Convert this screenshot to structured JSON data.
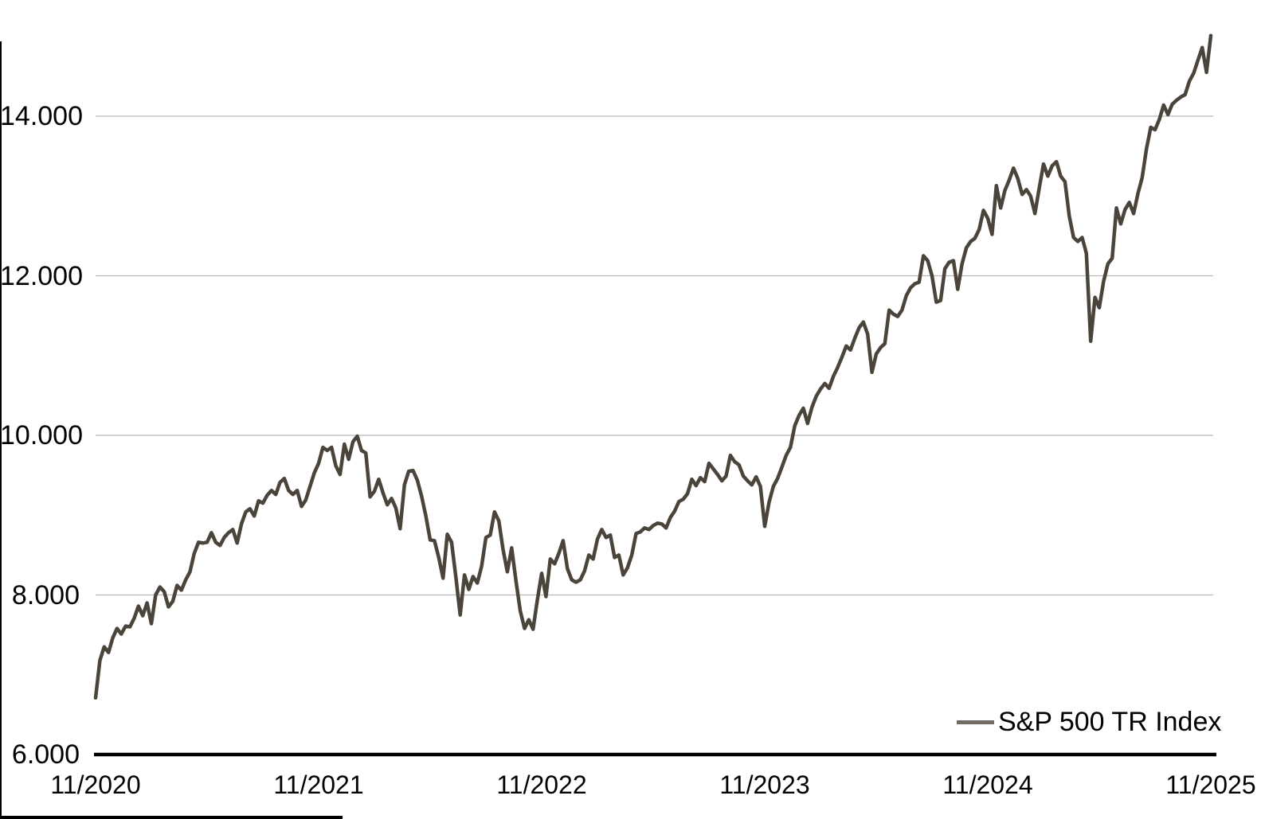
{
  "chart_data": {
    "type": "line",
    "title": "",
    "xlabel": "",
    "ylabel": "",
    "x_interval": "weekly",
    "x_ticks": [
      "11/2020",
      "11/2021",
      "11/2022",
      "11/2023",
      "11/2024",
      "11/2025"
    ],
    "x_tick_indices": [
      0,
      52,
      104,
      156,
      208,
      260
    ],
    "y_ticks": [
      "6.000",
      "8.000",
      "10.000",
      "12.000",
      "14.000"
    ],
    "y_tick_values": [
      6,
      8,
      10,
      12,
      14
    ],
    "ylim": [
      6,
      15.2
    ],
    "grid": "horizontal",
    "legend_position": "bottom-right",
    "number_format": "thousands-dot-separator",
    "series": [
      {
        "name": "S&P 500 TR Index",
        "values": [
          6.71,
          7.18,
          7.35,
          7.28,
          7.46,
          7.58,
          7.51,
          7.61,
          7.6,
          7.71,
          7.86,
          7.74,
          7.9,
          7.64,
          8.0,
          8.1,
          8.04,
          7.85,
          7.92,
          8.12,
          8.06,
          8.19,
          8.29,
          8.52,
          8.66,
          8.65,
          8.66,
          8.78,
          8.66,
          8.62,
          8.72,
          8.78,
          8.82,
          8.65,
          8.89,
          9.04,
          9.08,
          8.99,
          9.18,
          9.15,
          9.25,
          9.31,
          9.26,
          9.41,
          9.46,
          9.31,
          9.26,
          9.31,
          9.11,
          9.19,
          9.36,
          9.53,
          9.65,
          9.85,
          9.81,
          9.85,
          9.62,
          9.51,
          9.89,
          9.7,
          9.92,
          9.99,
          9.81,
          9.78,
          9.23,
          9.3,
          9.45,
          9.28,
          9.13,
          9.21,
          9.09,
          8.83,
          9.38,
          9.55,
          9.56,
          9.44,
          9.24,
          8.99,
          8.69,
          8.68,
          8.47,
          8.21,
          8.76,
          8.66,
          8.22,
          7.75,
          8.25,
          8.07,
          8.23,
          8.15,
          8.36,
          8.72,
          8.75,
          9.04,
          8.93,
          8.57,
          8.29,
          8.59,
          8.18,
          7.8,
          7.58,
          7.69,
          7.57,
          7.94,
          8.27,
          7.98,
          8.45,
          8.39,
          8.52,
          8.68,
          8.33,
          8.19,
          8.16,
          8.19,
          8.3,
          8.5,
          8.45,
          8.7,
          8.82,
          8.72,
          8.75,
          8.47,
          8.5,
          8.25,
          8.34,
          8.5,
          8.77,
          8.79,
          8.84,
          8.82,
          8.87,
          8.9,
          8.89,
          8.84,
          8.97,
          9.05,
          9.17,
          9.2,
          9.27,
          9.45,
          9.37,
          9.47,
          9.42,
          9.65,
          9.58,
          9.51,
          9.43,
          9.49,
          9.75,
          9.67,
          9.63,
          9.49,
          9.43,
          9.38,
          9.48,
          9.36,
          8.86,
          9.16,
          9.36,
          9.46,
          9.6,
          9.75,
          9.85,
          10.12,
          10.25,
          10.34,
          10.15,
          10.35,
          10.49,
          10.58,
          10.65,
          10.59,
          10.74,
          10.85,
          10.98,
          11.12,
          11.07,
          11.22,
          11.35,
          11.42,
          11.27,
          10.79,
          11.02,
          11.1,
          11.15,
          11.57,
          11.52,
          11.49,
          11.57,
          11.75,
          11.85,
          11.9,
          11.92,
          12.25,
          12.19,
          12.0,
          11.67,
          11.69,
          12.09,
          12.17,
          12.19,
          11.83,
          12.15,
          12.35,
          12.43,
          12.47,
          12.58,
          12.82,
          12.72,
          12.52,
          13.13,
          12.85,
          13.07,
          13.2,
          13.35,
          13.22,
          13.02,
          13.08,
          13.0,
          12.78,
          13.1,
          13.4,
          13.25,
          13.38,
          13.43,
          13.25,
          13.18,
          12.75,
          12.48,
          12.43,
          12.48,
          12.28,
          11.18,
          11.73,
          11.6,
          11.93,
          12.15,
          12.22,
          12.85,
          12.65,
          12.83,
          12.92,
          12.78,
          13.03,
          13.23,
          13.59,
          13.86,
          13.83,
          13.96,
          14.14,
          14.02,
          14.15,
          14.2,
          14.24,
          14.27,
          14.44,
          14.54,
          14.7,
          14.86,
          14.55,
          15.01
        ]
      }
    ]
  },
  "legend": {
    "label": "S&P 500 TR Index"
  },
  "colors": {
    "series_line": "#4a443b",
    "legend_sample": "#716b63",
    "gridline": "#b9b9b9",
    "axis_line": "#000000",
    "background": "#ffffff",
    "label_text": "#000000"
  }
}
